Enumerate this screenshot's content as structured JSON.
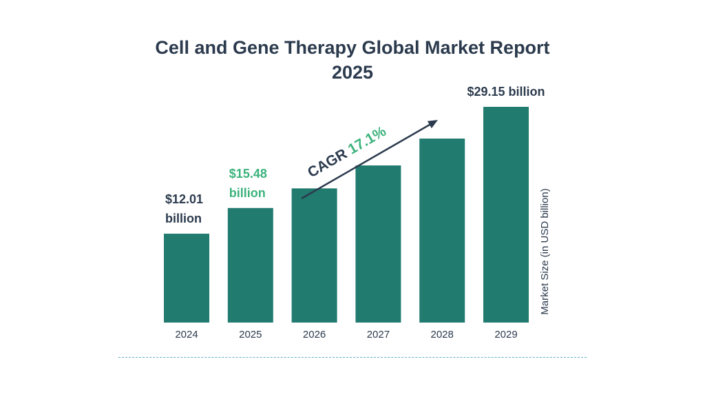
{
  "title_line1": "Cell and Gene Therapy Global Market Report",
  "title_line2": "2025",
  "cagr_text": "CAGR",
  "cagr_value": "17.1%",
  "colors": {
    "bar": "#227b6f",
    "title": "#2b3a4d",
    "accent": "#3bb27c",
    "axis_text": "#2b3a4d"
  },
  "chart_data": {
    "type": "bar",
    "categories": [
      "2024",
      "2025",
      "2026",
      "2027",
      "2028",
      "2029"
    ],
    "values": [
      12.01,
      15.48,
      18.13,
      21.23,
      24.86,
      29.15
    ],
    "ylabel": "Market Size (in USD billion)",
    "ylim": [
      0,
      29.15
    ],
    "grid": false,
    "labels": [
      {
        "index": 0,
        "lines": [
          "$12.01",
          "billion"
        ],
        "color": "#2b3a4d"
      },
      {
        "index": 1,
        "lines": [
          "$15.48",
          "billion"
        ],
        "color": "#3bb27c"
      },
      {
        "index": 5,
        "lines": [
          "$29.15 billion"
        ],
        "color": "#2b3a4d"
      }
    ]
  }
}
